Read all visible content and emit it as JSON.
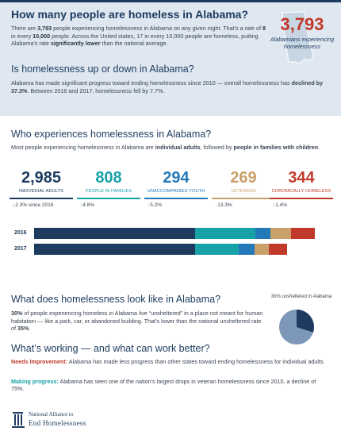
{
  "header": {
    "title": "How many people are homeless in Alabama?",
    "intro": {
      "t1": "There are ",
      "total": "3,793",
      "t2": " people experiencing homelessness in Alabama on any given night. That’s a rate of ",
      "rate": "8",
      "t3": " in every ",
      "rate_base": "10,000",
      "t4": " people. Across the United states, 17 in every 10,000 people are homeless, putting Alabama’s rate ",
      "rate_cmp": "significantly lower",
      "t5": " than the national average."
    },
    "stat": {
      "number": "3,793",
      "label": "Alabamians experiencing homelessness"
    }
  },
  "trend": {
    "title": "Is homelessness up or down in Alabama?",
    "t1": "Alabama has made significant progress toward ending homelessness since 2010 — overall homelessness has ",
    "decline": "declined by 37.3%",
    "t2": ". Between 2016 and 2017, homelessness fell by 7.7%."
  },
  "who": {
    "title": "Who experiences homelessness in Alabama?",
    "t1": "Most people experiencing homelessness in Alabama are ",
    "k1": "individual adults",
    "t2": ", followed by ",
    "k2": "people in families with children",
    "t3": ".",
    "categories": [
      {
        "number": "2,985",
        "label": "Individual adults",
        "change": "2.3% since 2016",
        "arrow": "↓",
        "color": "#1c3b5e"
      },
      {
        "number": "808",
        "label": "People in families",
        "change": "4.8%",
        "arrow": "↑",
        "color": "#17a2a8"
      },
      {
        "number": "294",
        "label": "Unaccompanied youth",
        "change": "5.2%",
        "arrow": "↑",
        "color": "#2378b8"
      },
      {
        "number": "269",
        "label": "Veterans",
        "change": "13.3%",
        "arrow": "↓",
        "color": "#c9a06a"
      },
      {
        "number": "344",
        "label": "Chronically homeless",
        "change": "1.4%",
        "arrow": "↑",
        "color": "#c0392b"
      }
    ],
    "bars": [
      {
        "year": "2016",
        "segments": [
          {
            "color": "#1c3b5e",
            "share": 0.574
          },
          {
            "color": "#17a2a8",
            "share": 0.215
          },
          {
            "color": "#2378b8",
            "share": 0.053
          },
          {
            "color": "#c9a06a",
            "share": 0.074
          },
          {
            "color": "#c0392b",
            "share": 0.084
          }
        ]
      },
      {
        "year": "2017",
        "segments": [
          {
            "color": "#1c3b5e",
            "share": 0.573
          },
          {
            "color": "#17a2a8",
            "share": 0.155
          },
          {
            "color": "#2378b8",
            "share": 0.056
          },
          {
            "color": "#c9a06a",
            "share": 0.052
          },
          {
            "color": "#c0392b",
            "share": 0.066
          }
        ]
      }
    ]
  },
  "looks": {
    "title": "What does homelessness look like in Alabama?",
    "k1": "30%",
    "t1": " of people experiencing homeless in Alabama live “unsheltered” in a place not meant for human habitation — like a park, car, or abandoned building. That’s lower than the national unsheltered rate of ",
    "k2": "35%",
    "t2": ".",
    "pie": {
      "label": "30% unsheltered in Alabama",
      "value": 0.3,
      "color_main": "#7d97b8",
      "color_slice": "#1c3b5e"
    }
  },
  "working": {
    "title": "What’s working — and what can work better?",
    "needs_label": "Needs Improvement:",
    "needs_text": " Alabama has made less progress than other states toward ending homelessness for individual adults.",
    "progress_label": "Making progress:",
    "progress_text": " Alabama has seen one of the nation’s largest drops in veteran homelessness since 2010, a decline of 75%."
  },
  "logo": {
    "line1": "National Alliance to",
    "line2": "End Homelessness"
  }
}
